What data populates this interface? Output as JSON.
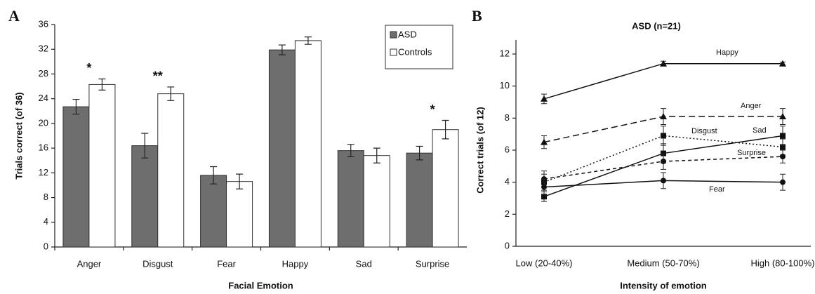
{
  "chart_data": [
    {
      "type": "bar",
      "panel": "A",
      "y_label": "Trials correct (of 36)",
      "x_label": "Facial Emotion",
      "categories": [
        "Anger",
        "Disgust",
        "Fear",
        "Happy",
        "Sad",
        "Surprise"
      ],
      "series": [
        {
          "name": "ASD",
          "color": "#6e6e6e",
          "values": [
            22.7,
            16.4,
            11.6,
            31.9,
            15.6,
            15.2
          ],
          "errors": [
            1.2,
            2.0,
            1.4,
            0.8,
            1.0,
            1.1
          ]
        },
        {
          "name": "Controls",
          "color": "#ffffff",
          "values": [
            26.3,
            24.8,
            10.6,
            33.4,
            14.8,
            19.0
          ],
          "errors": [
            0.9,
            1.1,
            1.2,
            0.6,
            1.2,
            1.5
          ]
        }
      ],
      "annotations": [
        {
          "text": "*",
          "category": "Anger"
        },
        {
          "text": "**",
          "category": "Disgust"
        },
        {
          "text": "*",
          "category": "Surprise"
        }
      ],
      "ylim": [
        0,
        36
      ],
      "yticks": [
        0,
        4,
        8,
        12,
        16,
        20,
        24,
        28,
        32,
        36
      ],
      "legend": "top-right"
    },
    {
      "type": "line",
      "panel": "B",
      "title": "ASD (n=21)",
      "y_label": "Correct trials (of 12)",
      "x_label": "Intensity of emotion",
      "categories": [
        "Low (20-40%)",
        "Medium (50-70%)",
        "High (80-100%)"
      ],
      "series": [
        {
          "name": "Happy",
          "color": "#111111",
          "style": "solid",
          "marker": "triangle",
          "values": [
            9.2,
            11.4,
            11.4
          ],
          "errors": [
            0.3,
            0.15,
            0.1
          ]
        },
        {
          "name": "Anger",
          "color": "#111111",
          "style": "dashed",
          "marker": "triangle",
          "values": [
            6.5,
            8.1,
            8.1
          ],
          "errors": [
            0.4,
            0.5,
            0.5
          ]
        },
        {
          "name": "Disgust",
          "color": "#111111",
          "style": "dotted",
          "marker": "square",
          "values": [
            4.0,
            6.9,
            6.2
          ],
          "errors": [
            0.5,
            0.6,
            0.5
          ]
        },
        {
          "name": "Sad",
          "color": "#111111",
          "style": "solid",
          "marker": "square",
          "values": [
            3.1,
            5.8,
            6.9
          ],
          "errors": [
            0.3,
            0.6,
            0.6
          ]
        },
        {
          "name": "Surprise",
          "color": "#111111",
          "style": "shortdash",
          "marker": "circle",
          "values": [
            4.2,
            5.3,
            5.6
          ],
          "errors": [
            0.5,
            0.5,
            0.4
          ]
        },
        {
          "name": "Fear",
          "color": "#111111",
          "style": "solid",
          "marker": "circle",
          "values": [
            3.7,
            4.1,
            4.0
          ],
          "errors": [
            0.5,
            0.5,
            0.5
          ]
        }
      ],
      "ylim": [
        0,
        12
      ],
      "yticks": [
        0,
        2,
        4,
        6,
        8,
        10,
        12
      ]
    }
  ]
}
